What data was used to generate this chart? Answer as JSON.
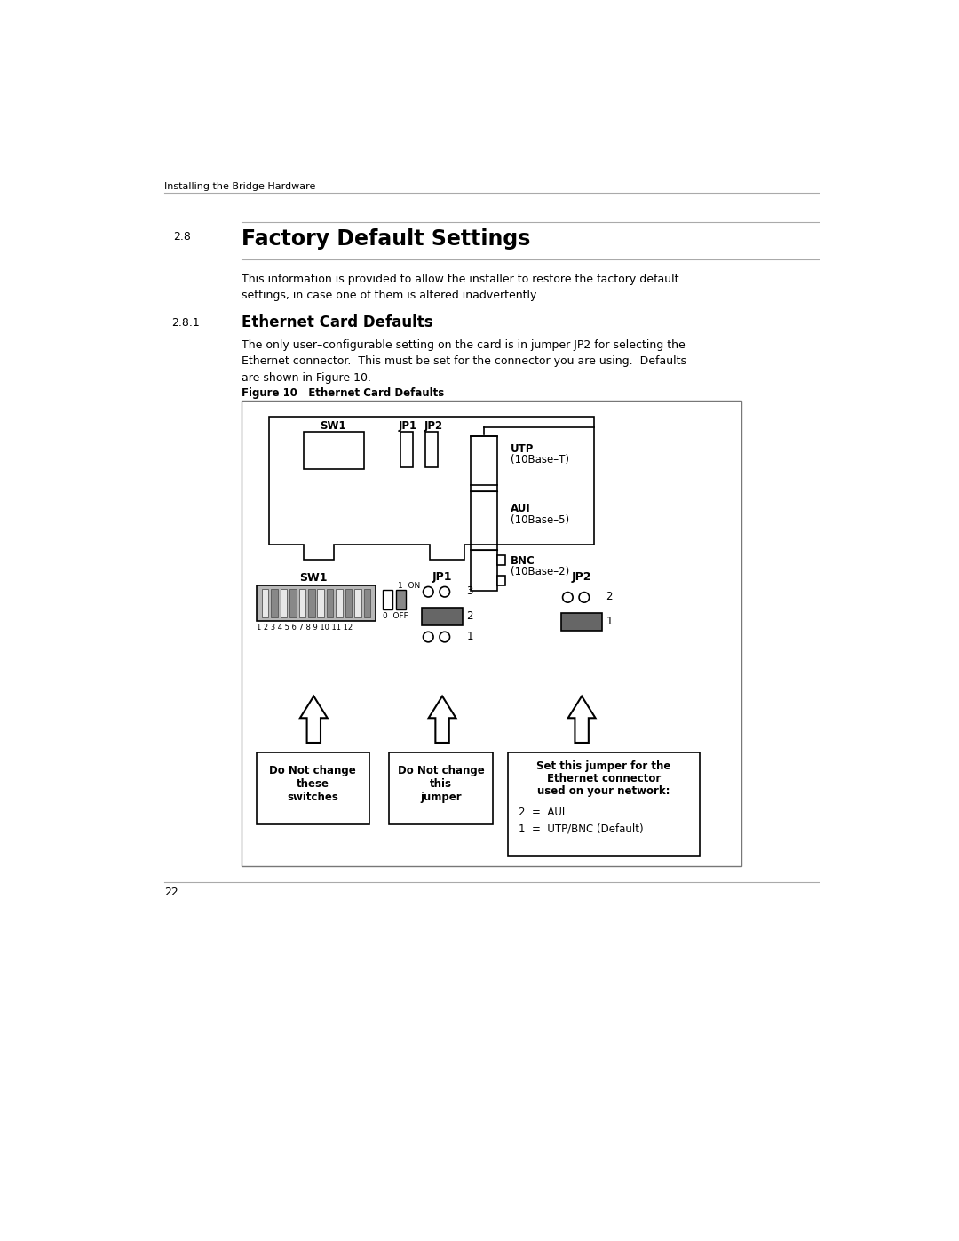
{
  "page_header": "Installing the Bridge Hardware",
  "section_num": "2.8",
  "section_title": "Factory Default Settings",
  "subsection_num": "2.8.1",
  "subsection_title": "Ethernet Card Defaults",
  "paragraph1": "This information is provided to allow the installer to restore the factory default\nsettings, in case one of them is altered inadvertently.",
  "paragraph2": "The only user–configurable setting on the card is in jumper JP2 for selecting the\nEthernet connector.  This must be set for the connector you are using.  Defaults\nare shown in Figure 10.",
  "figure_caption": "Figure 10   Ethernet Card Defaults",
  "page_num": "22",
  "bg_color": "#ffffff",
  "text_color": "#000000",
  "rule_color": "#aaaaaa",
  "dark_gray": "#666666",
  "mid_gray": "#999999",
  "light_gray": "#bbbbbb",
  "fig_border": "#555555"
}
